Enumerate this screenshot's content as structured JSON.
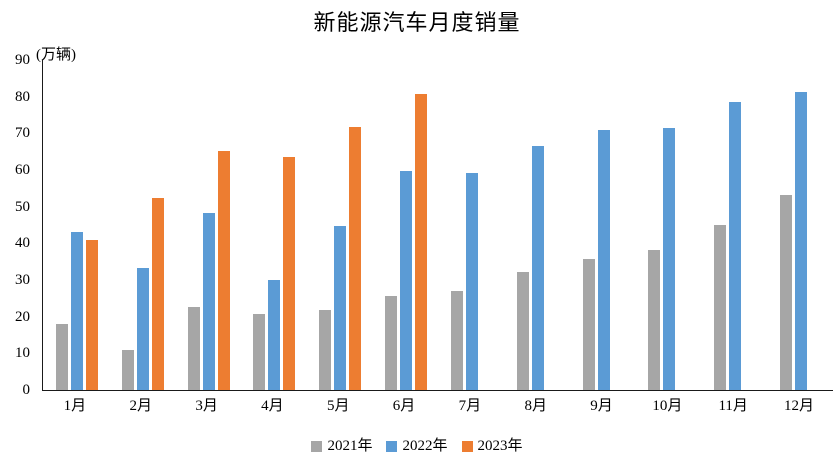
{
  "chart_data": {
    "type": "bar",
    "title": "新能源汽车月度销量",
    "unit_label": "(万辆)",
    "categories": [
      "1月",
      "2月",
      "3月",
      "4月",
      "5月",
      "6月",
      "7月",
      "8月",
      "9月",
      "10月",
      "11月",
      "12月"
    ],
    "series": [
      {
        "name": "2021年",
        "color": "#A6A6A6",
        "values": [
          17.9,
          11.0,
          22.6,
          20.6,
          21.7,
          25.6,
          27.1,
          32.1,
          35.7,
          38.3,
          45.0,
          53.1
        ]
      },
      {
        "name": "2022年",
        "color": "#5B9BD5",
        "values": [
          43.1,
          33.4,
          48.4,
          29.9,
          44.7,
          59.6,
          59.3,
          66.6,
          70.8,
          71.4,
          78.6,
          81.4
        ]
      },
      {
        "name": "2023年",
        "color": "#ED7D31",
        "values": [
          40.8,
          52.5,
          65.3,
          63.6,
          71.7,
          80.6,
          null,
          null,
          null,
          null,
          null,
          null
        ]
      }
    ],
    "ylim": [
      0,
      90
    ],
    "ytick_step": 10,
    "yticks": [
      0,
      10,
      20,
      30,
      40,
      50,
      60,
      70,
      80,
      90
    ],
    "grid": false,
    "legend_position": "bottom",
    "axis_color": "#1a1a1a",
    "background_color": "#FFFFFF"
  }
}
